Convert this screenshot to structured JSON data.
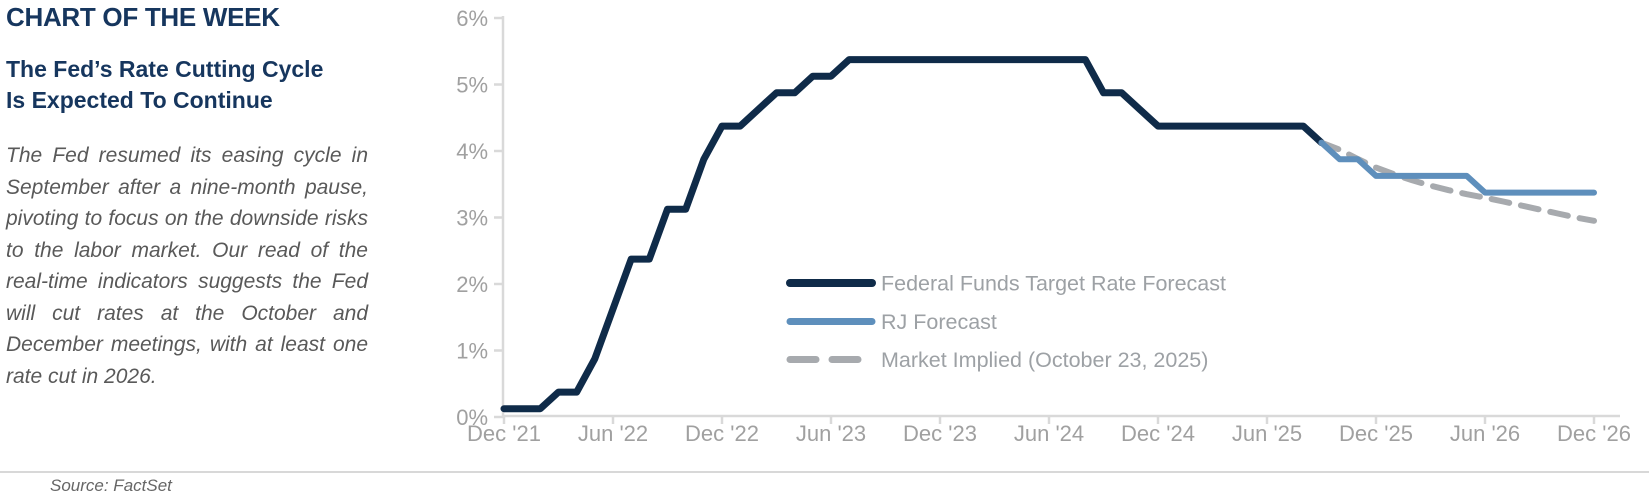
{
  "header": {
    "kicker": "CHART OF THE WEEK",
    "subtitle": [
      "The Fed’s Rate Cutting Cycle",
      "Is Expected To Continue"
    ],
    "body": "The Fed resumed its easing cycle in September after a nine-month pause, pivoting to focus on the downside risks to the labor market. Our read of the real-time indicators suggests the Fed will cut rates at the October and December meetings, with at least one rate cut in 2026."
  },
  "footer": {
    "source": "Source: FactSet"
  },
  "colors": {
    "navy": "#0F2B49",
    "blue": "#5E8FBC",
    "gray": "#A7AAAE",
    "axis": "#D9D9D9",
    "axis_text": "#A0A0A0",
    "legend_text": "#9DA1A5",
    "title_text": "#16365E",
    "body_text": "#595959"
  },
  "chart_data": {
    "type": "line",
    "title": "",
    "xlabel": "",
    "ylabel": "",
    "ylim": [
      0,
      6
    ],
    "grid": false,
    "legend_position": "inside-lower-middle",
    "y_tick_labels": [
      "0%",
      "1%",
      "2%",
      "3%",
      "4%",
      "5%",
      "6%"
    ],
    "x_tick_labels": [
      "Dec '21",
      "Jun '22",
      "Dec '22",
      "Jun '23",
      "Dec '23",
      "Jun '24",
      "Dec '24",
      "Jun '25",
      "Dec '25",
      "Jun '26",
      "Dec '26"
    ],
    "x_tick_months": [
      0,
      6,
      12,
      18,
      24,
      30,
      36,
      42,
      48,
      54,
      60
    ],
    "x_unit": "months since Dec 2021, monthly sampling",
    "y_unit": "percent",
    "series": [
      {
        "name": "Federal Funds Target Rate Forecast",
        "style": "solid",
        "color_key": "navy",
        "stroke_width": 7,
        "start_month": 0,
        "values": [
          0.125,
          0.125,
          0.125,
          0.375,
          0.375,
          0.875,
          1.625,
          2.375,
          2.375,
          3.125,
          3.125,
          3.875,
          4.375,
          4.375,
          4.625,
          4.875,
          4.875,
          5.125,
          5.125,
          5.375,
          5.375,
          5.375,
          5.375,
          5.375,
          5.375,
          5.375,
          5.375,
          5.375,
          5.375,
          5.375,
          5.375,
          5.375,
          5.375,
          4.875,
          4.875,
          4.625,
          4.375,
          4.375,
          4.375,
          4.375,
          4.375,
          4.375,
          4.375,
          4.375,
          4.375,
          4.125
        ]
      },
      {
        "name": "RJ Forecast",
        "style": "solid",
        "color_key": "blue",
        "stroke_width": 6,
        "start_month": 45,
        "values": [
          4.125,
          3.875,
          3.875,
          3.625,
          3.625,
          3.625,
          3.625,
          3.625,
          3.625,
          3.375,
          3.375,
          3.375,
          3.375,
          3.375,
          3.375,
          3.375
        ]
      },
      {
        "name": "Market Implied (October 23, 2025)",
        "style": "dashed",
        "color_key": "gray",
        "stroke_width": 6,
        "start_month": 45,
        "values": [
          4.125,
          4.02,
          3.88,
          3.75,
          3.65,
          3.56,
          3.48,
          3.41,
          3.35,
          3.3,
          3.24,
          3.18,
          3.12,
          3.06,
          3.0,
          2.95
        ]
      }
    ]
  }
}
